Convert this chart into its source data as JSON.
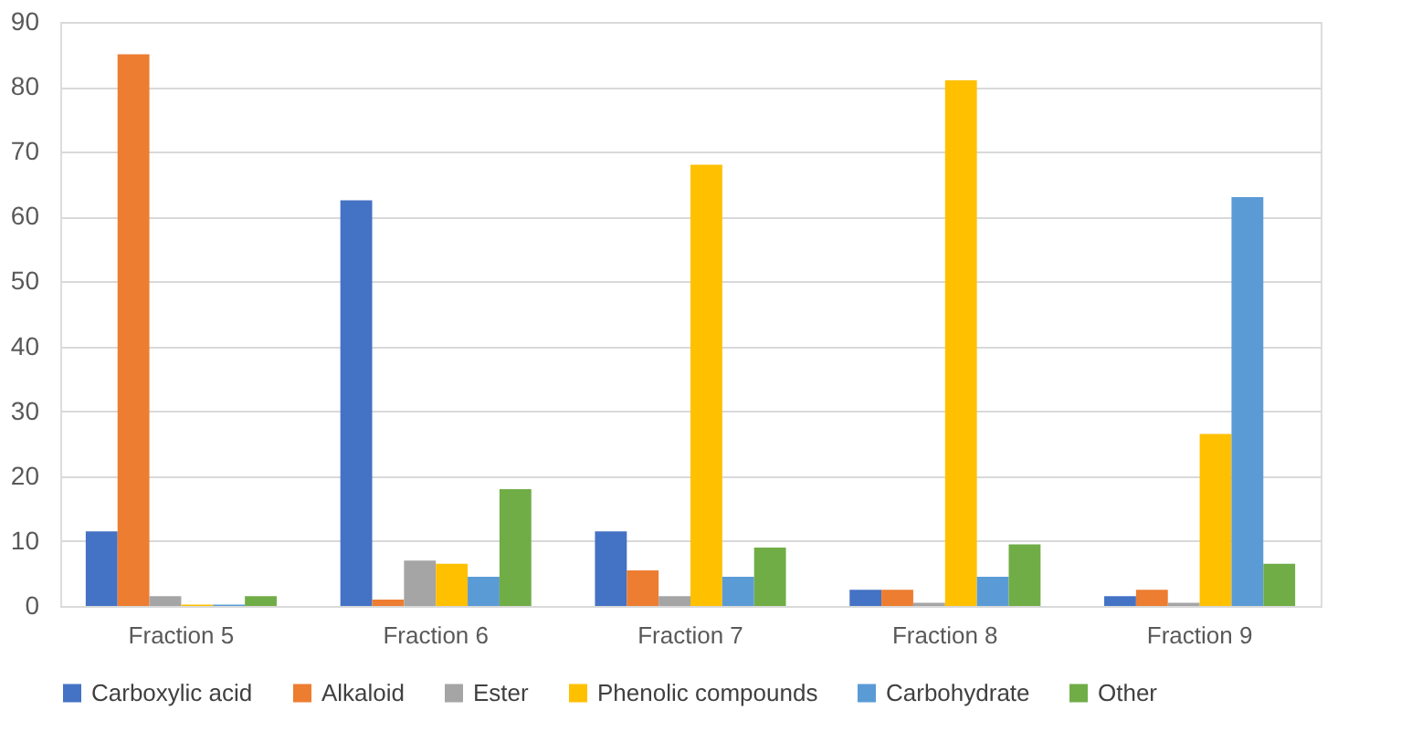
{
  "chart_data": {
    "type": "bar",
    "categories": [
      "Fraction 5",
      "Fraction 6",
      "Fraction 7",
      "Fraction 8",
      "Fraction 9"
    ],
    "series": [
      {
        "name": "Carboxylic acid",
        "color": "#4472c4",
        "values": [
          11.5,
          62.5,
          11.5,
          2.5,
          1.5
        ]
      },
      {
        "name": "Alkaloid",
        "color": "#ed7d31",
        "values": [
          85,
          1,
          5.5,
          2.5,
          2.5
        ]
      },
      {
        "name": "Ester",
        "color": "#a5a5a5",
        "values": [
          1.5,
          7,
          1.5,
          0.5,
          0.5
        ]
      },
      {
        "name": "Phenolic compounds",
        "color": "#ffc000",
        "values": [
          0.2,
          6.5,
          68,
          81,
          26.5
        ]
      },
      {
        "name": "Carbohydrate",
        "color": "#5b9bd5",
        "values": [
          0.2,
          4.5,
          4.5,
          4.5,
          63
        ]
      },
      {
        "name": "Other",
        "color": "#70ad47",
        "values": [
          1.5,
          18,
          9,
          9.5,
          6.5
        ]
      }
    ],
    "ylim": [
      0,
      90
    ],
    "yticks": [
      0,
      10,
      20,
      30,
      40,
      50,
      60,
      70,
      80,
      90
    ],
    "grid": "y",
    "legend": "bottom"
  }
}
